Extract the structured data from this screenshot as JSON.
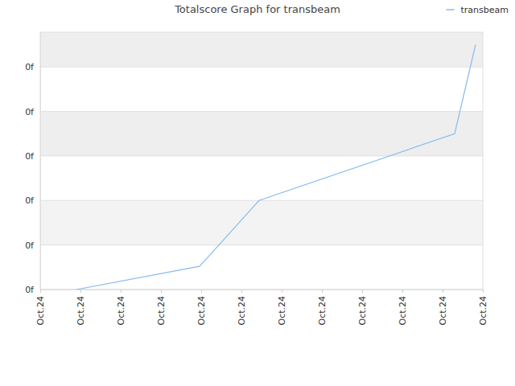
{
  "chart_data": {
    "type": "line",
    "title": "Totalscore Graph for transbeam",
    "x": [
      0.9,
      3.96,
      5.44,
      10.3,
      10.82
    ],
    "series": [
      {
        "name": "transbeam",
        "color": "#88bbee",
        "values": [
          0,
          0.52,
          2.0,
          3.5,
          5.5
        ]
      }
    ],
    "xlim": [
      0,
      11
    ],
    "xticks": [
      {
        "value": 0,
        "label": "Oct.24"
      },
      {
        "value": 1,
        "label": "Oct.24"
      },
      {
        "value": 2,
        "label": "Oct.24"
      },
      {
        "value": 3,
        "label": "Oct.24"
      },
      {
        "value": 4,
        "label": "Oct.24"
      },
      {
        "value": 5,
        "label": "Oct.24"
      },
      {
        "value": 6,
        "label": "Oct.24"
      },
      {
        "value": 7,
        "label": "Oct.24"
      },
      {
        "value": 8,
        "label": "Oct.24"
      },
      {
        "value": 9,
        "label": "Oct.24"
      },
      {
        "value": 10,
        "label": "Oct.24"
      },
      {
        "value": 11,
        "label": "Oct.24"
      }
    ],
    "ylim": [
      0,
      5.78
    ],
    "yticks": [
      {
        "value": 0,
        "label": "0f"
      },
      {
        "value": 1,
        "label": "0f"
      },
      {
        "value": 2,
        "label": "0f"
      },
      {
        "value": 3,
        "label": "0f"
      },
      {
        "value": 4,
        "label": "0f"
      },
      {
        "value": 5,
        "label": "0f"
      }
    ],
    "grid": true,
    "legend": "top-right"
  }
}
